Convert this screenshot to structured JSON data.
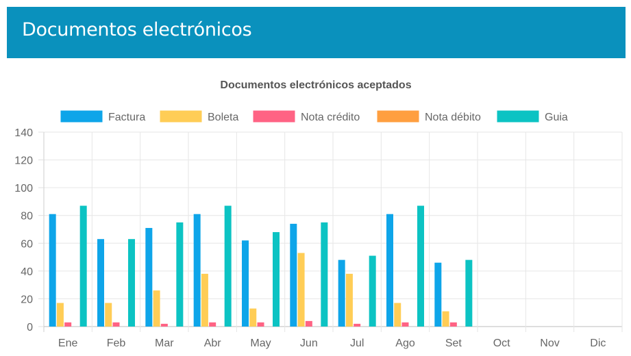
{
  "header": {
    "title": "Documentos electrónicos"
  },
  "chart_data": {
    "type": "bar",
    "title": "Documentos electrónicos aceptados",
    "xlabel": "",
    "ylabel": "",
    "ylim": [
      0,
      140
    ],
    "yticks": [
      0,
      20,
      40,
      60,
      80,
      100,
      120,
      140
    ],
    "grid": true,
    "legend_position": "top",
    "categories": [
      "Ene",
      "Feb",
      "Mar",
      "Abr",
      "May",
      "Jun",
      "Jul",
      "Ago",
      "Set",
      "Oct",
      "Nov",
      "Dic"
    ],
    "series": [
      {
        "name": "Factura",
        "color": "#0ea5e9",
        "values": [
          81,
          63,
          71,
          81,
          62,
          74,
          48,
          81,
          46,
          0,
          0,
          0
        ]
      },
      {
        "name": "Boleta",
        "color": "#ffcd56",
        "values": [
          17,
          17,
          26,
          38,
          13,
          53,
          38,
          17,
          11,
          0,
          0,
          0
        ]
      },
      {
        "name": "Nota crédito",
        "color": "#ff6384",
        "values": [
          3,
          3,
          2,
          3,
          3,
          4,
          2,
          3,
          3,
          0,
          0,
          0
        ]
      },
      {
        "name": "Nota débito",
        "color": "#ff9f40",
        "values": [
          0,
          0,
          0,
          0,
          0,
          0,
          0,
          0,
          0,
          0,
          0,
          0
        ]
      },
      {
        "name": "Guia",
        "color": "#0cc3c3",
        "values": [
          87,
          63,
          75,
          87,
          68,
          75,
          51,
          87,
          48,
          0,
          0,
          0
        ]
      }
    ]
  }
}
